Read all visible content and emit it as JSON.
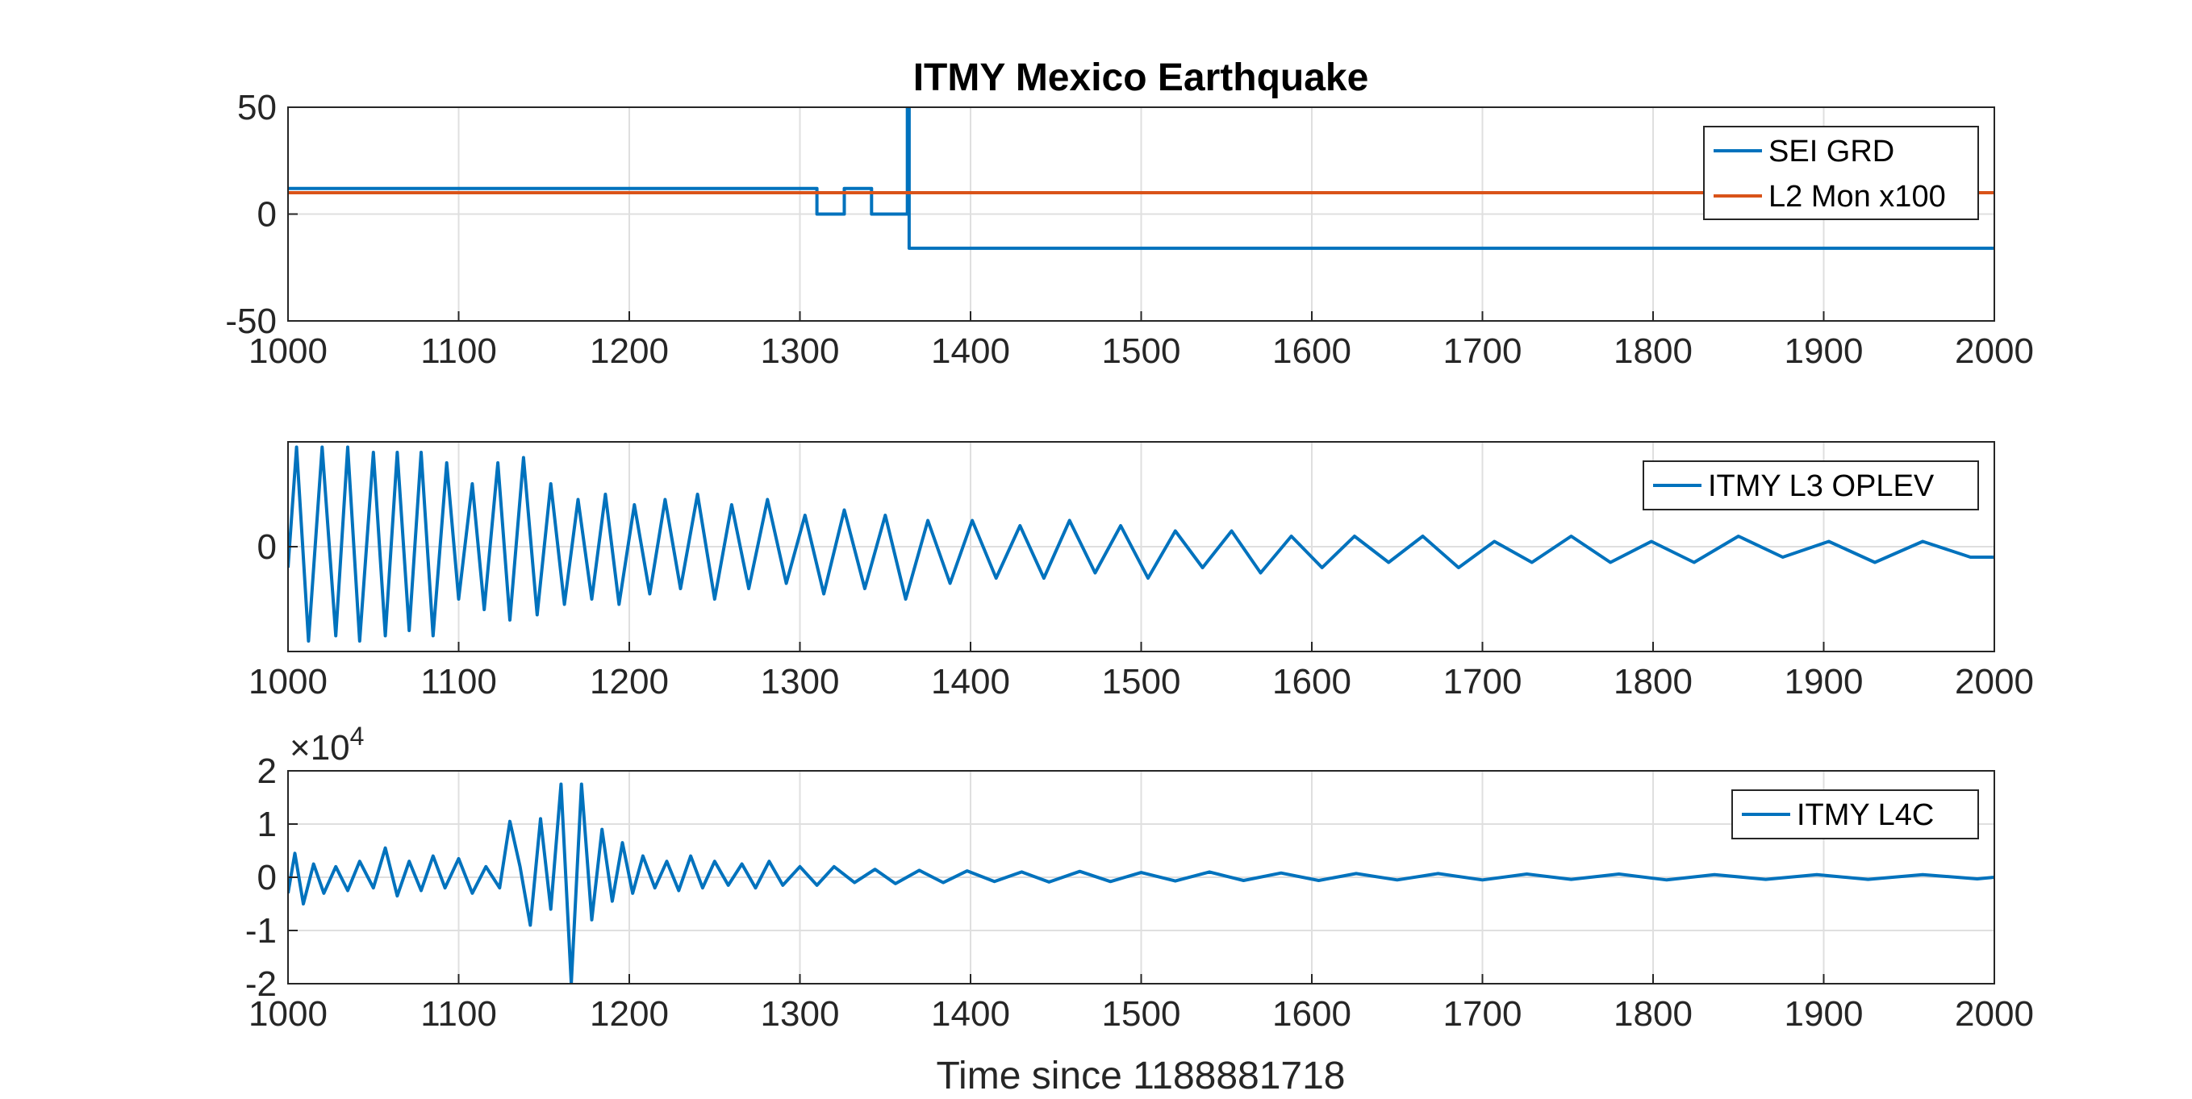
{
  "figure": {
    "title": "ITMY Mexico Earthquake",
    "xlabel": "Time since 1188881718"
  },
  "chart_data": [
    {
      "type": "line",
      "title": "ITMY Mexico Earthquake",
      "xlabel": "",
      "ylabel": "",
      "xlim": [
        1000,
        2000
      ],
      "ylim": [
        -50,
        50
      ],
      "xticks": [
        1000,
        1100,
        1200,
        1300,
        1400,
        1500,
        1600,
        1700,
        1800,
        1900,
        2000
      ],
      "yticks": [
        -50,
        0,
        50
      ],
      "grid": true,
      "legend_position": "top-right",
      "series": [
        {
          "name": "SEI GRD",
          "color": "#0072BD",
          "x": [
            1000,
            1310,
            1310,
            1326,
            1326,
            1342,
            1342,
            1363,
            1363,
            1364,
            1364,
            2000
          ],
          "y": [
            12,
            12,
            0,
            0,
            12,
            12,
            0,
            0,
            50,
            50,
            -16,
            -16
          ]
        },
        {
          "name": "L2 Mon x100",
          "color": "#D95319",
          "x": [
            1000,
            2000
          ],
          "y": [
            10,
            10
          ]
        }
      ]
    },
    {
      "type": "line",
      "title": "",
      "xlabel": "",
      "ylabel": "",
      "xlim": [
        1000,
        2000
      ],
      "ylim": [
        -1,
        1
      ],
      "xticks": [
        1000,
        1100,
        1200,
        1300,
        1400,
        1500,
        1600,
        1700,
        1800,
        1900,
        2000
      ],
      "yticks": [
        0
      ],
      "grid": true,
      "legend_position": "top-right",
      "series": [
        {
          "name": "ITMY L3 OPLEV",
          "color": "#0072BD",
          "x": [
            1000,
            1005,
            1012,
            1020,
            1028,
            1035,
            1042,
            1050,
            1057,
            1064,
            1071,
            1078,
            1085,
            1093,
            1100,
            1108,
            1115,
            1123,
            1130,
            1138,
            1146,
            1154,
            1162,
            1170,
            1178,
            1186,
            1194,
            1203,
            1212,
            1221,
            1230,
            1240,
            1250,
            1260,
            1270,
            1281,
            1292,
            1303,
            1314,
            1326,
            1338,
            1350,
            1362,
            1375,
            1388,
            1401,
            1415,
            1429,
            1443,
            1458,
            1473,
            1488,
            1504,
            1520,
            1536,
            1553,
            1570,
            1588,
            1606,
            1625,
            1645,
            1665,
            1686,
            1707,
            1729,
            1752,
            1775,
            1799,
            1824,
            1850,
            1876,
            1903,
            1930,
            1958,
            1986,
            2000
          ],
          "y": [
            -0.2,
            0.95,
            -0.9,
            0.95,
            -0.85,
            0.95,
            -0.9,
            0.9,
            -0.85,
            0.9,
            -0.8,
            0.9,
            -0.85,
            0.8,
            -0.5,
            0.6,
            -0.6,
            0.8,
            -0.7,
            0.85,
            -0.65,
            0.6,
            -0.55,
            0.45,
            -0.5,
            0.5,
            -0.55,
            0.4,
            -0.45,
            0.45,
            -0.4,
            0.5,
            -0.5,
            0.4,
            -0.4,
            0.45,
            -0.35,
            0.3,
            -0.45,
            0.35,
            -0.4,
            0.3,
            -0.5,
            0.25,
            -0.35,
            0.25,
            -0.3,
            0.2,
            -0.3,
            0.25,
            -0.25,
            0.2,
            -0.3,
            0.15,
            -0.2,
            0.15,
            -0.25,
            0.1,
            -0.2,
            0.1,
            -0.15,
            0.1,
            -0.2,
            0.05,
            -0.15,
            0.1,
            -0.15,
            0.05,
            -0.15,
            0.1,
            -0.1,
            0.05,
            -0.15,
            0.05,
            -0.1,
            -0.1
          ]
        }
      ]
    },
    {
      "type": "line",
      "title": "",
      "xlabel": "Time since 1188881718",
      "ylabel": "",
      "xlim": [
        1000,
        2000
      ],
      "ylim": [
        -20000,
        20000
      ],
      "xticks": [
        1000,
        1100,
        1200,
        1300,
        1400,
        1500,
        1600,
        1700,
        1800,
        1900,
        2000
      ],
      "yticks": [
        -20000,
        -10000,
        0,
        10000,
        20000
      ],
      "ytick_labels": [
        "-2",
        "-1",
        "0",
        "1",
        "2"
      ],
      "y_exponent_label": "×10",
      "y_exponent_power": "4",
      "grid": true,
      "legend_position": "top-right",
      "series": [
        {
          "name": "ITMY L4C",
          "color": "#0072BD",
          "x": [
            1000,
            1004,
            1009,
            1015,
            1021,
            1028,
            1035,
            1042,
            1050,
            1057,
            1064,
            1071,
            1078,
            1085,
            1092,
            1100,
            1108,
            1116,
            1124,
            1130,
            1136,
            1142,
            1148,
            1154,
            1160,
            1166,
            1172,
            1178,
            1184,
            1190,
            1196,
            1202,
            1208,
            1215,
            1222,
            1229,
            1236,
            1243,
            1250,
            1258,
            1266,
            1274,
            1282,
            1290,
            1300,
            1310,
            1320,
            1332,
            1344,
            1356,
            1370,
            1384,
            1398,
            1414,
            1430,
            1446,
            1464,
            1482,
            1500,
            1520,
            1540,
            1560,
            1582,
            1604,
            1626,
            1650,
            1674,
            1700,
            1726,
            1752,
            1780,
            1808,
            1836,
            1866,
            1896,
            1926,
            1958,
            1990,
            2000
          ],
          "y": [
            -3000,
            4500,
            -5000,
            2500,
            -3000,
            2000,
            -2500,
            3000,
            -2000,
            5500,
            -3500,
            3000,
            -2500,
            4000,
            -2000,
            3500,
            -3000,
            2000,
            -2000,
            10500,
            2000,
            -9000,
            11000,
            -6000,
            17500,
            -20000,
            17500,
            -8000,
            9000,
            -4500,
            6500,
            -3000,
            4000,
            -2000,
            3000,
            -2500,
            4000,
            -2000,
            3000,
            -1500,
            2500,
            -2000,
            3000,
            -1500,
            2000,
            -1500,
            2000,
            -1000,
            1500,
            -1200,
            1300,
            -1000,
            1200,
            -800,
            1000,
            -900,
            1100,
            -800,
            900,
            -700,
            1000,
            -600,
            800,
            -600,
            700,
            -500,
            700,
            -500,
            600,
            -400,
            600,
            -500,
            500,
            -400,
            500,
            -400,
            500,
            -300,
            0
          ]
        }
      ]
    }
  ]
}
